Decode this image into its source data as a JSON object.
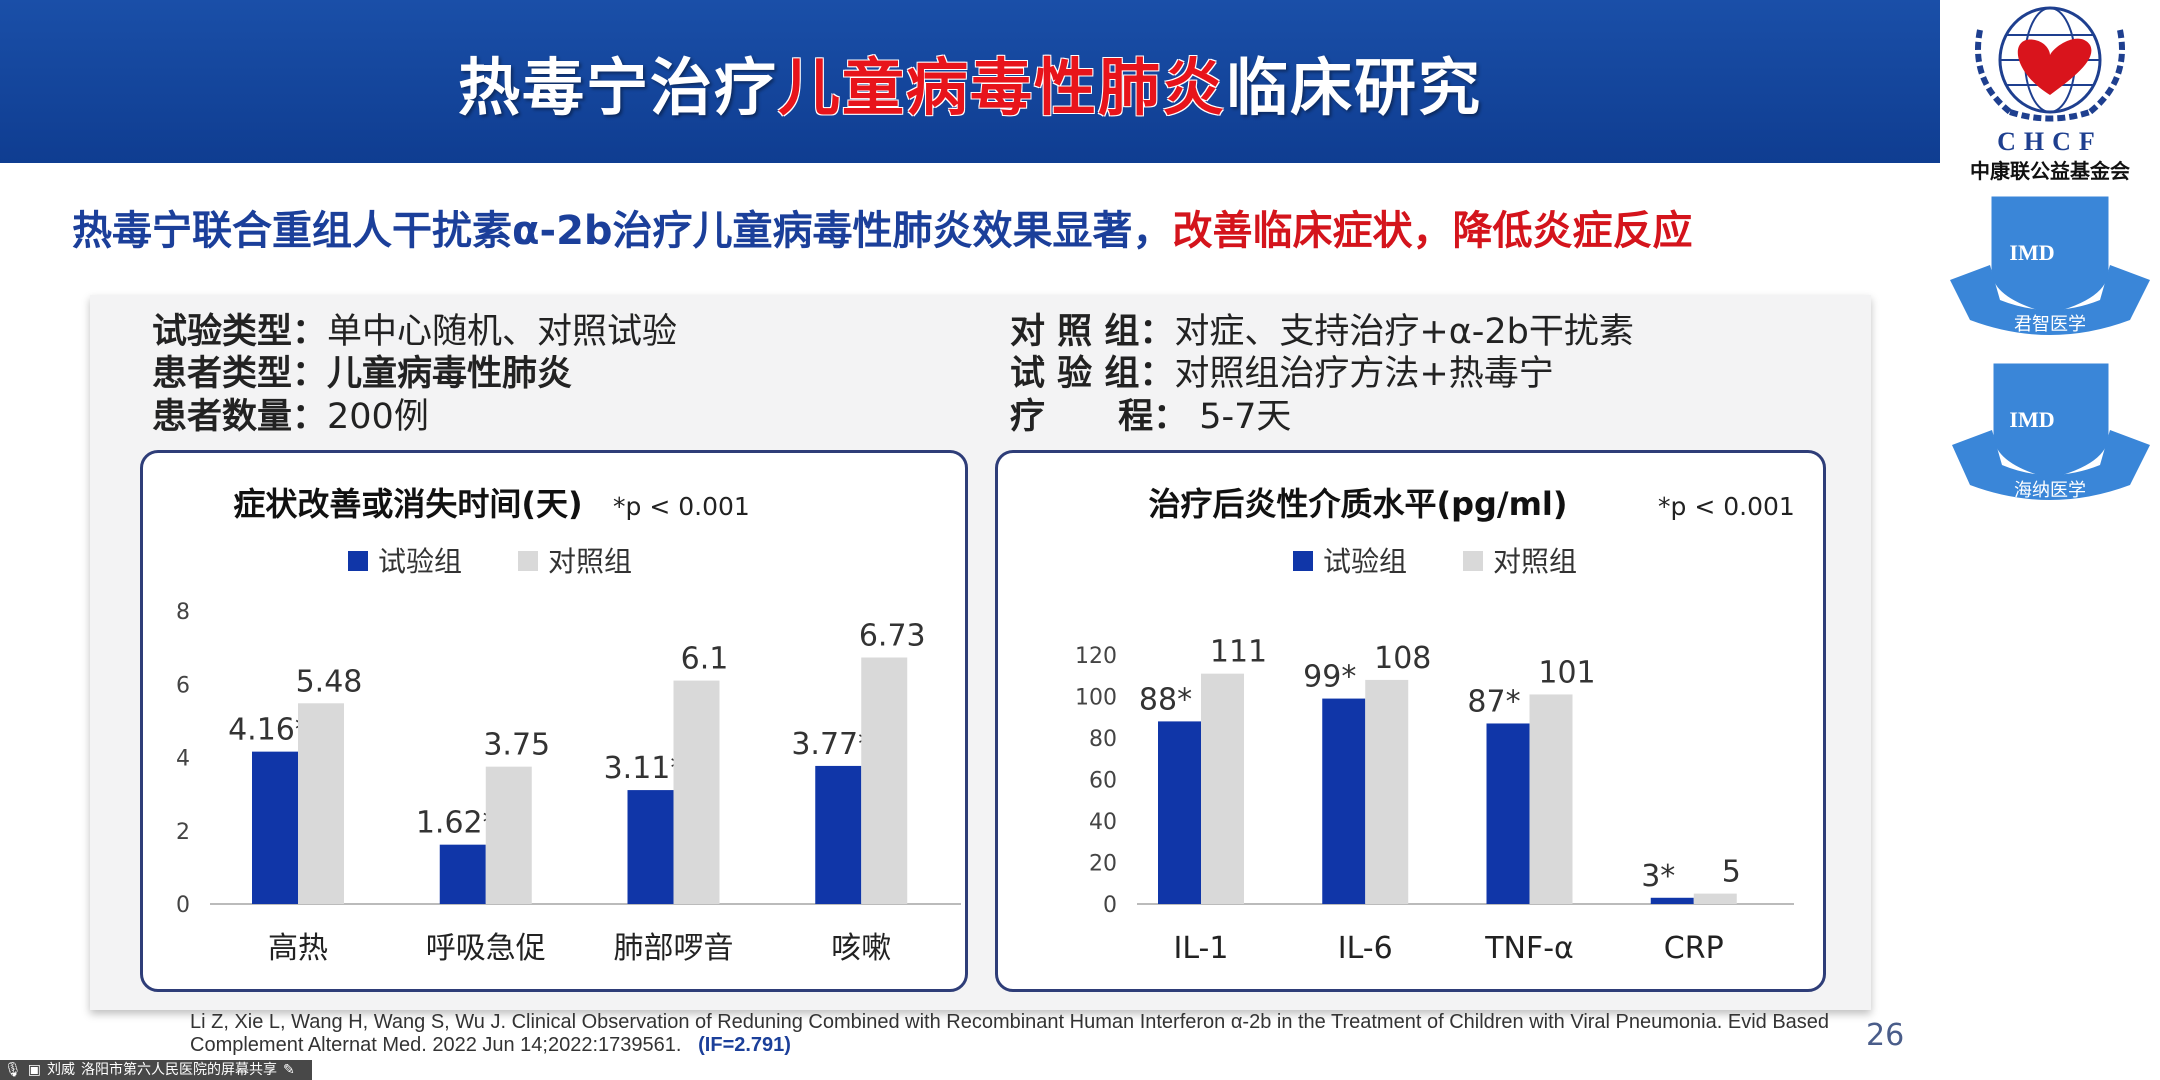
{
  "header": {
    "title_part1": "热毒宁治疗",
    "title_red": "儿童病毒性肺炎",
    "title_part2": "临床研究"
  },
  "logos": {
    "chcf_text": "CHCF",
    "chcf_name": "中康联公益基金会",
    "imd1_text": "IMD",
    "imd1_name": "君智医学",
    "imd2_text": "IMD",
    "imd2_name": "海纳医学"
  },
  "subtitle": {
    "blue": "热毒宁联合重组人干扰素α-2b治疗儿童病毒性肺炎效果显著，",
    "red": "改善临床症状，降低炎症反应"
  },
  "info": {
    "left": [
      {
        "label": "试验类型：",
        "value": "单中心随机、对照试验",
        "bold": false
      },
      {
        "label": "患者类型：",
        "value": "儿童病毒性肺炎",
        "bold": true
      },
      {
        "label": "患者数量：",
        "value": "200例",
        "bold": false
      }
    ],
    "right": [
      {
        "label": "对 照 组：",
        "value": "对症、支持治疗+α-2b干扰素"
      },
      {
        "label": "试 验 组：",
        "value": "对照组治疗方法+热毒宁"
      },
      {
        "label": "疗      程：",
        "value": " 5-7天"
      }
    ]
  },
  "colors": {
    "test": "#1036a8",
    "control": "#d9d9d9",
    "header": "#1a4fa8",
    "accent_red": "#d4141c"
  },
  "chart_data": [
    {
      "type": "bar",
      "title": "症状改善或消失时间(天)",
      "annotation": "*p < 0.001",
      "categories": [
        "高热",
        "呼吸急促",
        "肺部啰音",
        "咳嗽"
      ],
      "series": [
        {
          "name": "试验组",
          "values": [
            4.16,
            1.62,
            3.11,
            3.77
          ],
          "labels": [
            "4.16*",
            "1.62*",
            "3.11*",
            "3.77*"
          ]
        },
        {
          "name": "对照组",
          "values": [
            5.48,
            3.75,
            6.1,
            6.73
          ],
          "labels": [
            "5.48",
            "3.75",
            "6.1",
            "6.73"
          ]
        }
      ],
      "ylim": [
        0,
        8
      ],
      "yticks": [
        0,
        2,
        4,
        6,
        8
      ],
      "legend": "top",
      "grid": false
    },
    {
      "type": "bar",
      "title": "治疗后炎性介质水平(pg/ml)",
      "annotation": "*p < 0.001",
      "categories": [
        "IL-1",
        "IL-6",
        "TNF-α",
        "CRP"
      ],
      "series": [
        {
          "name": "试验组",
          "values": [
            88,
            99,
            87,
            3
          ],
          "labels": [
            "88*",
            "99*",
            "87*",
            "3*"
          ]
        },
        {
          "name": "对照组",
          "values": [
            111,
            108,
            101,
            5
          ],
          "labels": [
            "111",
            "108",
            "101",
            "5"
          ]
        }
      ],
      "ylim": [
        0,
        120
      ],
      "yticks": [
        0,
        20,
        40,
        60,
        80,
        100,
        120
      ],
      "legend": "top",
      "grid": false
    }
  ],
  "citation": {
    "text": "Li Z, Xie L, Wang H, Wang S, Wu J. Clinical Observation of Reduning Combined with Recombinant Human Interferon α-2b in the Treatment of Children with Viral Pneumonia. Evid Based Complement Alternat Med. 2022 Jun 14;2022:1739561.",
    "if": "(IF=2.791)"
  },
  "page_number": "26",
  "share_bar": {
    "user": "刘威",
    "text": "洛阳市第六人民医院的屏幕共享"
  }
}
